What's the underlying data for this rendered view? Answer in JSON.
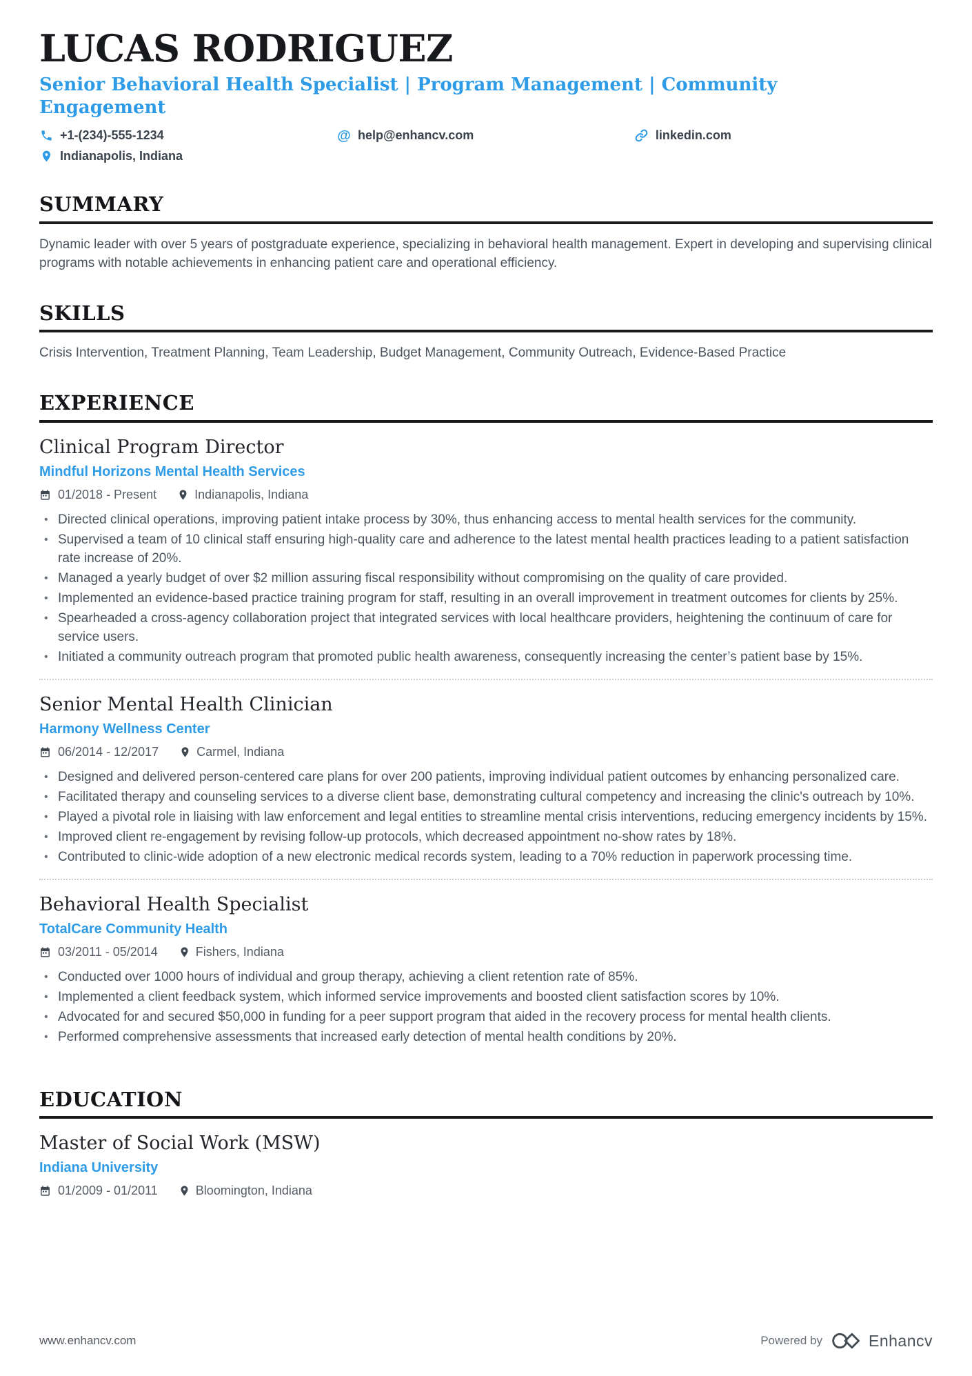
{
  "accent_color": "#2e9be6",
  "header": {
    "name": "LUCAS RODRIGUEZ",
    "title": "Senior Behavioral Health Specialist | Program Management | Community Engagement",
    "contacts": [
      {
        "icon": "phone-icon",
        "text": "+1-(234)-555-1234"
      },
      {
        "icon": "at-icon",
        "text": "help@enhancv.com"
      },
      {
        "icon": "link-icon",
        "text": "linkedin.com"
      },
      {
        "icon": "pin-icon",
        "text": "Indianapolis, Indiana"
      }
    ]
  },
  "summary": {
    "heading": "SUMMARY",
    "text": "Dynamic leader with over 5 years of postgraduate experience, specializing in behavioral health management. Expert in developing and supervising clinical programs with notable achievements in enhancing patient care and operational efficiency."
  },
  "skills": {
    "heading": "SKILLS",
    "text": "Crisis Intervention, Treatment Planning, Team Leadership, Budget Management, Community Outreach, Evidence-Based Practice"
  },
  "experience": {
    "heading": "EXPERIENCE",
    "jobs": [
      {
        "title": "Clinical Program Director",
        "company": "Mindful Horizons Mental Health Services",
        "dates": "01/2018 - Present",
        "location": "Indianapolis, Indiana",
        "bullets": [
          "Directed clinical operations, improving patient intake process by 30%, thus enhancing access to mental health services for the community.",
          "Supervised a team of 10 clinical staff ensuring high-quality care and adherence to the latest mental health practices leading to a patient satisfaction rate increase of 20%.",
          "Managed a yearly budget of over $2 million assuring fiscal responsibility without compromising on the quality of care provided.",
          "Implemented an evidence-based practice training program for staff, resulting in an overall improvement in treatment outcomes for clients by 25%.",
          "Spearheaded a cross-agency collaboration project that integrated services with local healthcare providers, heightening the continuum of care for service users.",
          "Initiated a community outreach program that promoted public health awareness, consequently increasing the center’s patient base by 15%."
        ]
      },
      {
        "title": "Senior Mental Health Clinician",
        "company": "Harmony Wellness Center",
        "dates": "06/2014 - 12/2017",
        "location": "Carmel, Indiana",
        "bullets": [
          "Designed and delivered person-centered care plans for over 200 patients, improving individual patient outcomes by enhancing personalized care.",
          "Facilitated therapy and counseling services to a diverse client base, demonstrating cultural competency and increasing the clinic's outreach by 10%.",
          "Played a pivotal role in liaising with law enforcement and legal entities to streamline mental crisis interventions, reducing emergency incidents by 15%.",
          "Improved client re-engagement by revising follow-up protocols, which decreased appointment no-show rates by 18%.",
          "Contributed to clinic-wide adoption of a new electronic medical records system, leading to a 70% reduction in paperwork processing time."
        ]
      },
      {
        "title": "Behavioral Health Specialist",
        "company": "TotalCare Community Health",
        "dates": "03/2011 - 05/2014",
        "location": "Fishers, Indiana",
        "bullets": [
          "Conducted over 1000 hours of individual and group therapy, achieving a client retention rate of 85%.",
          "Implemented a client feedback system, which informed service improvements and boosted client satisfaction scores by 10%.",
          "Advocated for and secured $50,000 in funding for a peer support program that aided in the recovery process for mental health clients.",
          "Performed comprehensive assessments that increased early detection of mental health conditions by 20%."
        ]
      }
    ]
  },
  "education": {
    "heading": "EDUCATION",
    "degree": "Master of Social Work (MSW)",
    "school": "Indiana University",
    "dates": "01/2009 - 01/2011",
    "location": "Bloomington, Indiana"
  },
  "footer": {
    "website": "www.enhancv.com",
    "powered_by": "Powered by",
    "brand": "Enhancv"
  }
}
